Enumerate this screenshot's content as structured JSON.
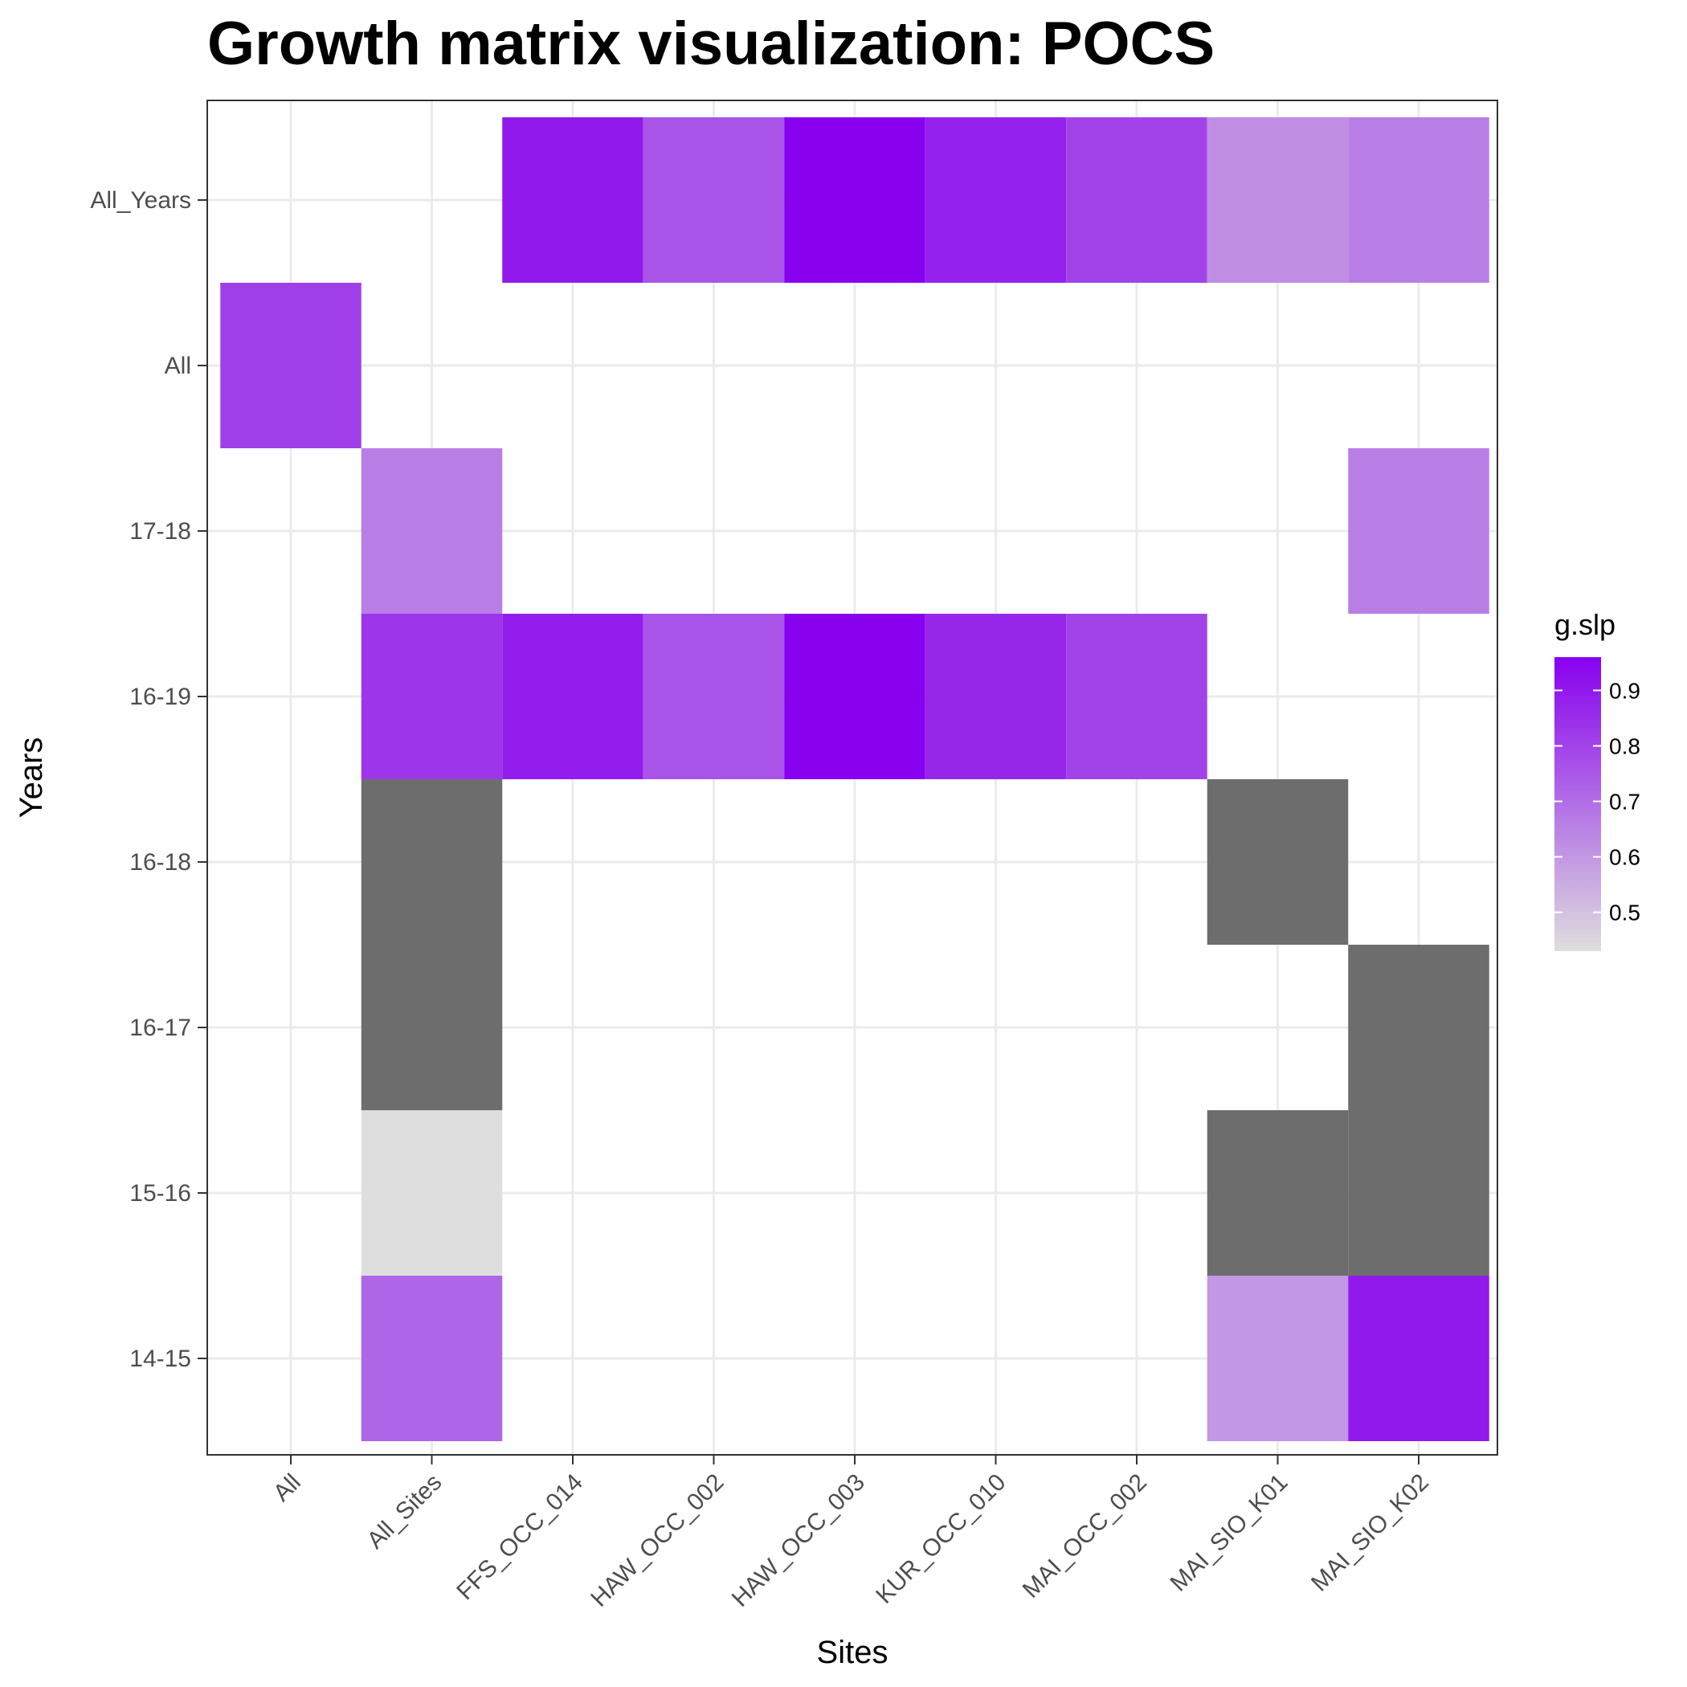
{
  "chart_data": {
    "type": "heatmap",
    "title": "Growth matrix visualization: POCS",
    "xlabel": "Sites",
    "ylabel": "Years",
    "x_categories": [
      "All",
      "All_Sites",
      "FFS_OCC_014",
      "HAW_OCC_002",
      "HAW_OCC_003",
      "KUR_OCC_010",
      "MAI_OCC_002",
      "MAI_SIO_K01",
      "MAI_SIO_K02"
    ],
    "y_categories": [
      "All_Years",
      "All",
      "17-18",
      "16-19",
      "16-18",
      "16-17",
      "15-16",
      "14-15"
    ],
    "legend": {
      "title": "g.slp",
      "position": "right",
      "ticks": [
        0.5,
        0.6,
        0.7,
        0.8,
        0.9
      ],
      "tick_labels": [
        "0.5",
        "0.6",
        "0.7",
        "0.8",
        "0.9"
      ],
      "range": [
        0.43,
        0.96
      ],
      "low_color": "#dedede",
      "high_color": "#8800ee"
    },
    "na_color": "#6d6d6d",
    "grid": true,
    "cells": [
      {
        "x": "FFS_OCC_014",
        "y": "All_Years",
        "value": 0.9
      },
      {
        "x": "HAW_OCC_002",
        "y": "All_Years",
        "value": 0.76
      },
      {
        "x": "HAW_OCC_003",
        "y": "All_Years",
        "value": 0.96
      },
      {
        "x": "KUR_OCC_010",
        "y": "All_Years",
        "value": 0.88
      },
      {
        "x": "MAI_OCC_002",
        "y": "All_Years",
        "value": 0.8
      },
      {
        "x": "MAI_SIO_K01",
        "y": "All_Years",
        "value": 0.62
      },
      {
        "x": "MAI_SIO_K02",
        "y": "All_Years",
        "value": 0.66
      },
      {
        "x": "All",
        "y": "All",
        "value": 0.81
      },
      {
        "x": "All_Sites",
        "y": "17-18",
        "value": 0.66
      },
      {
        "x": "MAI_SIO_K02",
        "y": "17-18",
        "value": 0.66
      },
      {
        "x": "All_Sites",
        "y": "16-19",
        "value": 0.83
      },
      {
        "x": "FFS_OCC_014",
        "y": "16-19",
        "value": 0.89
      },
      {
        "x": "HAW_OCC_002",
        "y": "16-19",
        "value": 0.76
      },
      {
        "x": "HAW_OCC_003",
        "y": "16-19",
        "value": 0.96
      },
      {
        "x": "KUR_OCC_010",
        "y": "16-19",
        "value": 0.87
      },
      {
        "x": "MAI_OCC_002",
        "y": "16-19",
        "value": 0.8
      },
      {
        "x": "All_Sites",
        "y": "16-18",
        "value": null
      },
      {
        "x": "MAI_SIO_K01",
        "y": "16-18",
        "value": null
      },
      {
        "x": "All_Sites",
        "y": "16-17",
        "value": null
      },
      {
        "x": "MAI_SIO_K02",
        "y": "16-17",
        "value": null
      },
      {
        "x": "All_Sites",
        "y": "15-16",
        "value": 0.43
      },
      {
        "x": "MAI_SIO_K01",
        "y": "15-16",
        "value": null
      },
      {
        "x": "MAI_SIO_K02",
        "y": "15-16",
        "value": null
      },
      {
        "x": "All_Sites",
        "y": "14-15",
        "value": 0.72
      },
      {
        "x": "MAI_SIO_K01",
        "y": "14-15",
        "value": 0.6
      },
      {
        "x": "MAI_SIO_K02",
        "y": "14-15",
        "value": 0.9
      }
    ]
  }
}
